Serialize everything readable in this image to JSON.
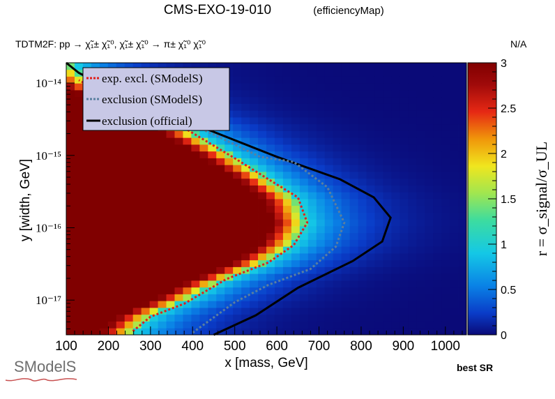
{
  "title": "CMS-EXO-19-010",
  "title_suffix": "(efficiencyMap)",
  "process": "TDTM2F: pp  → χ̃₁± χ̃₁⁰, χ̃₁± χ̃₁⁰ → π± χ̃₁⁰ χ̃₁⁰",
  "na_label": "N/A",
  "best_sr": "best SR",
  "logo_text": "SModelS",
  "colors": {
    "dark_red": "#800000",
    "exp_excl": "#e0201b",
    "excl_smodels": "#5a7fa0",
    "excl_official": "#000000",
    "legend_bg": "#c8c8e6"
  },
  "chart_data": {
    "type": "heatmap",
    "xlabel": "x [mass, GeV]",
    "ylabel": "y [width, GeV]",
    "zlabel": "r = σ_signal/σ_UL",
    "x_ticks": [
      "100",
      "200",
      "300",
      "400",
      "500",
      "600",
      "700",
      "800",
      "900",
      "1000"
    ],
    "y_ticks": [
      "10⁻¹⁴",
      "10⁻¹⁵",
      "10⁻¹⁶",
      "10⁻¹⁷"
    ],
    "z_ticks": [
      "0",
      "0.5",
      "1",
      "1.5",
      "2",
      "2.5",
      "3"
    ],
    "xlim": [
      100,
      1050
    ],
    "ylim_log10": [
      -17.48,
      -13.72
    ],
    "zlim": [
      0,
      3
    ],
    "colormap": "rainbow (blue to dark red)",
    "legend": [
      {
        "label": "exp. excl. (SModelS)",
        "style": "dotted",
        "color": "#e0201b"
      },
      {
        "label": "exclusion (SModelS)",
        "style": "dotted",
        "color": "#5a7fa0"
      },
      {
        "label": "exclusion (official)",
        "style": "solid",
        "color": "#000000"
      }
    ],
    "curves": {
      "exp_excl": [
        [
          258,
          -17.43
        ],
        [
          300,
          -17.23
        ],
        [
          380,
          -17.05
        ],
        [
          430,
          -16.88
        ],
        [
          480,
          -16.71
        ],
        [
          580,
          -16.48
        ],
        [
          640,
          -16.24
        ],
        [
          672,
          -15.93
        ],
        [
          650,
          -15.58
        ],
        [
          580,
          -15.33
        ],
        [
          500,
          -15.04
        ],
        [
          380,
          -14.62
        ],
        [
          280,
          -14.44
        ],
        [
          200,
          -14.18
        ],
        [
          130,
          -13.96
        ]
      ],
      "excl_smodels": [
        [
          400,
          -17.45
        ],
        [
          500,
          -17.03
        ],
        [
          580,
          -16.79
        ],
        [
          680,
          -16.57
        ],
        [
          740,
          -16.26
        ],
        [
          760,
          -15.93
        ],
        [
          720,
          -15.44
        ],
        [
          640,
          -15.09
        ],
        [
          560,
          -15.02
        ],
        [
          450,
          -14.71
        ],
        [
          330,
          -14.41
        ],
        [
          240,
          -14.11
        ],
        [
          140,
          -13.86
        ]
      ],
      "excl_official": [
        [
          450,
          -17.48
        ],
        [
          550,
          -17.21
        ],
        [
          650,
          -16.83
        ],
        [
          780,
          -16.46
        ],
        [
          850,
          -16.19
        ],
        [
          870,
          -15.86
        ],
        [
          830,
          -15.58
        ],
        [
          750,
          -15.33
        ],
        [
          600,
          -15.02
        ],
        [
          400,
          -14.56
        ],
        [
          200,
          -14.07
        ],
        [
          130,
          -13.86
        ],
        [
          100,
          -13.72
        ]
      ]
    }
  }
}
